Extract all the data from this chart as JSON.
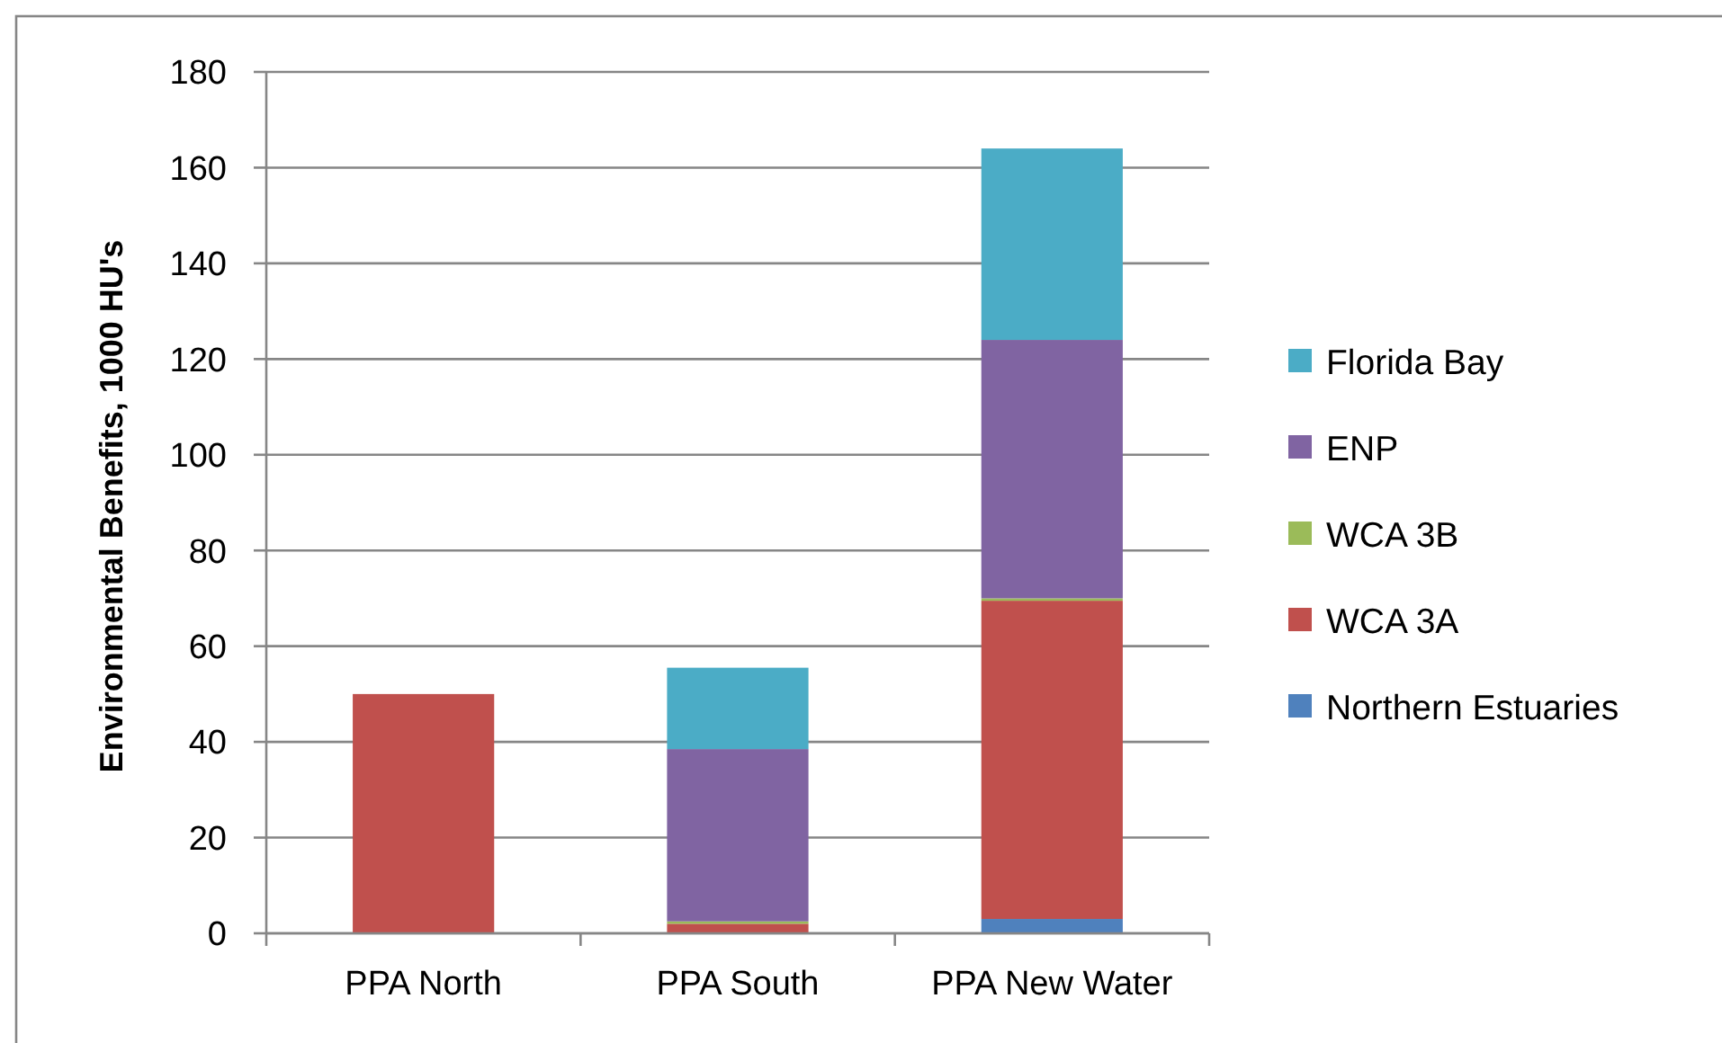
{
  "chart_data": {
    "type": "bar",
    "stacked": true,
    "ylabel": "Environmental Benefits, 1000 HU's",
    "categories": [
      "PPA North",
      "PPA South",
      "PPA New Water"
    ],
    "series": [
      {
        "name": "Northern Estuaries",
        "color": "#4f81bd",
        "values": [
          0,
          0,
          3
        ]
      },
      {
        "name": "WCA 3A",
        "color": "#c0504d",
        "values": [
          50,
          2,
          66.5
        ]
      },
      {
        "name": "WCA 3B",
        "color": "#9bbb59",
        "values": [
          0,
          0.5,
          0.5
        ]
      },
      {
        "name": "ENP",
        "color": "#8064a2",
        "values": [
          0,
          36,
          54
        ]
      },
      {
        "name": "Florida Bay",
        "color": "#4bacc6",
        "values": [
          0,
          17,
          40
        ]
      }
    ],
    "ylim": [
      0,
      180
    ],
    "yticks": [
      0,
      20,
      40,
      60,
      80,
      100,
      120,
      140,
      160,
      180
    ],
    "grid": "y",
    "legend": "right"
  }
}
